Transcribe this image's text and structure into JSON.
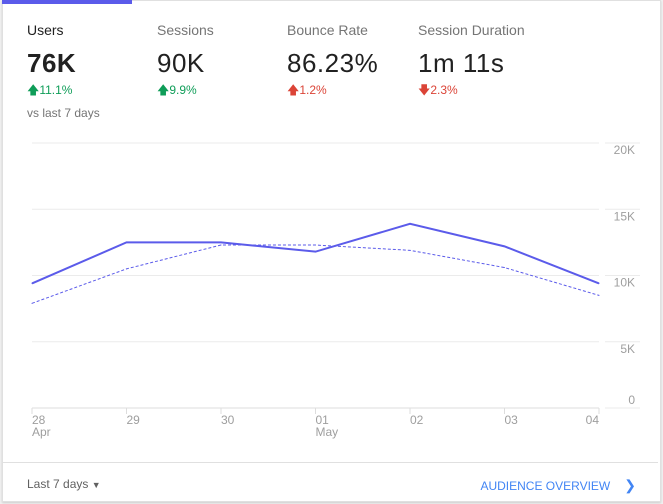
{
  "metrics": [
    {
      "label": "Users",
      "value": "76K",
      "delta": "11.1%",
      "direction": "up",
      "color": "#0f9d58",
      "sub": "vs last 7 days",
      "active": true
    },
    {
      "label": "Sessions",
      "value": "90K",
      "delta": "9.9%",
      "direction": "up",
      "color": "#0f9d58"
    },
    {
      "label": "Bounce Rate",
      "value": "86.23%",
      "delta": "1.2%",
      "direction": "up",
      "color": "#db4437"
    },
    {
      "label": "Session Duration",
      "value": "1m 11s",
      "delta": "2.3%",
      "direction": "down",
      "color": "#db4437"
    }
  ],
  "chart_data": {
    "type": "line",
    "categories": [
      "28 Apr",
      "29",
      "30",
      "01 May",
      "02",
      "03",
      "04"
    ],
    "x_tick_labels": [
      [
        "28",
        "Apr"
      ],
      [
        "29",
        ""
      ],
      [
        "30",
        ""
      ],
      [
        "01",
        "May"
      ],
      [
        "02",
        ""
      ],
      [
        "03",
        ""
      ],
      [
        "04",
        ""
      ]
    ],
    "y_ticks": [
      "0",
      "5K",
      "10K",
      "15K",
      "20K"
    ],
    "ylim": [
      0,
      20000
    ],
    "grid": true,
    "series": [
      {
        "style": "solid",
        "color": "#5b5bea",
        "values": [
          9400,
          12500,
          12500,
          11800,
          13900,
          12200,
          9400
        ]
      },
      {
        "style": "dashed",
        "color": "#5b5bea",
        "values": [
          7900,
          10500,
          12300,
          12300,
          11900,
          10600,
          8500
        ]
      }
    ]
  },
  "footer": {
    "range_label": "Last 7 days",
    "link_label": "AUDIENCE OVERVIEW",
    "accent": "#4285f4"
  }
}
